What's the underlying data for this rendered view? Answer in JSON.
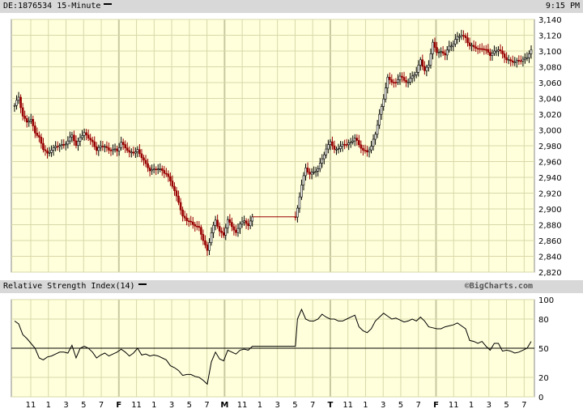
{
  "header": {
    "symbol_label": "DE:1876534 15-Minute",
    "time": "9:15 PM"
  },
  "rsi_panel": {
    "label": "Relative Strength Index(14)",
    "watermark": "©BigCharts.com"
  },
  "colors": {
    "background": "#ffffdc",
    "grid": "#d8d8a8",
    "divider": "#c8c8a0",
    "down": "#990000",
    "up": "#000000"
  },
  "chart_data": [
    {
      "type": "candlestick",
      "interval": "15-Minute",
      "ylim": [
        2820,
        3140
      ],
      "yticks": [
        2820,
        2840,
        2860,
        2880,
        2900,
        2920,
        2940,
        2960,
        2980,
        3000,
        3020,
        3040,
        3060,
        3080,
        3100,
        3120,
        3140
      ],
      "ytick_labels": [
        "2,820",
        "2,840",
        "2,860",
        "2,880",
        "2,900",
        "2,920",
        "2,940",
        "2,960",
        "2,980",
        "3,000",
        "3,020",
        "3,040",
        "3,060",
        "3,080",
        "3,100",
        "3,120",
        "3,140"
      ],
      "xtick_labels": [
        "11",
        "1",
        "3",
        "5",
        "7",
        "F",
        "11",
        "1",
        "3",
        "5",
        "7",
        "M",
        "11",
        "1",
        "3",
        "5",
        "7",
        "T",
        "11",
        "1",
        "3",
        "5",
        "7",
        "F",
        "11",
        "1",
        "3",
        "5",
        "7"
      ],
      "day_labels": [
        "F",
        "M",
        "T",
        "F"
      ],
      "close_path": [
        [
          0,
          3030
        ],
        [
          2,
          3042
        ],
        [
          4,
          3018
        ],
        [
          6,
          3010
        ],
        [
          8,
          3012
        ],
        [
          10,
          2998
        ],
        [
          12,
          2990
        ],
        [
          14,
          2975
        ],
        [
          16,
          2970
        ],
        [
          18,
          2976
        ],
        [
          20,
          2978
        ],
        [
          22,
          2980
        ],
        [
          24,
          2982
        ],
        [
          26,
          2986
        ],
        [
          28,
          2993
        ],
        [
          30,
          2980
        ],
        [
          32,
          2992
        ],
        [
          34,
          2995
        ],
        [
          36,
          2990
        ],
        [
          38,
          2985
        ],
        [
          40,
          2975
        ],
        [
          42,
          2978
        ],
        [
          44,
          2980
        ],
        [
          46,
          2975
        ],
        [
          48,
          2975
        ],
        [
          50,
          2973
        ],
        [
          52,
          2985
        ],
        [
          54,
          2978
        ],
        [
          56,
          2970
        ],
        [
          58,
          2972
        ],
        [
          60,
          2975
        ],
        [
          62,
          2965
        ],
        [
          64,
          2956
        ],
        [
          66,
          2950
        ],
        [
          68,
          2950
        ],
        [
          70,
          2950
        ],
        [
          72,
          2949
        ],
        [
          74,
          2945
        ],
        [
          76,
          2935
        ],
        [
          78,
          2922
        ],
        [
          80,
          2910
        ],
        [
          82,
          2890
        ],
        [
          84,
          2885
        ],
        [
          86,
          2883
        ],
        [
          88,
          2880
        ],
        [
          90,
          2875
        ],
        [
          92,
          2860
        ],
        [
          94,
          2848
        ],
        [
          96,
          2870
        ],
        [
          98,
          2885
        ],
        [
          100,
          2872
        ],
        [
          102,
          2868
        ],
        [
          104,
          2885
        ],
        [
          106,
          2878
        ],
        [
          108,
          2870
        ],
        [
          110,
          2882
        ],
        [
          112,
          2883
        ],
        [
          114,
          2880
        ],
        [
          116,
          2890
        ],
        [
          120,
          2890
        ],
        [
          126,
          2890
        ],
        [
          132,
          2890
        ],
        [
          137,
          2890
        ],
        [
          138,
          2900
        ],
        [
          140,
          2930
        ],
        [
          142,
          2952
        ],
        [
          144,
          2945
        ],
        [
          146,
          2946
        ],
        [
          148,
          2950
        ],
        [
          150,
          2965
        ],
        [
          152,
          2975
        ],
        [
          154,
          2985
        ],
        [
          156,
          2975
        ],
        [
          158,
          2978
        ],
        [
          160,
          2980
        ],
        [
          162,
          2982
        ],
        [
          164,
          2985
        ],
        [
          166,
          2990
        ],
        [
          168,
          2980
        ],
        [
          170,
          2975
        ],
        [
          172,
          2973
        ],
        [
          174,
          2978
        ],
        [
          176,
          2995
        ],
        [
          178,
          3020
        ],
        [
          180,
          3040
        ],
        [
          182,
          3065
        ],
        [
          184,
          3062
        ],
        [
          186,
          3060
        ],
        [
          188,
          3068
        ],
        [
          190,
          3062
        ],
        [
          192,
          3062
        ],
        [
          194,
          3068
        ],
        [
          196,
          3072
        ],
        [
          198,
          3090
        ],
        [
          200,
          3075
        ],
        [
          202,
          3082
        ],
        [
          204,
          3110
        ],
        [
          206,
          3100
        ],
        [
          208,
          3098
        ],
        [
          210,
          3095
        ],
        [
          212,
          3106
        ],
        [
          214,
          3110
        ],
        [
          216,
          3117
        ],
        [
          218,
          3120
        ],
        [
          220,
          3118
        ],
        [
          222,
          3106
        ],
        [
          224,
          3105
        ],
        [
          226,
          3103
        ],
        [
          228,
          3104
        ],
        [
          230,
          3100
        ],
        [
          232,
          3095
        ],
        [
          234,
          3100
        ],
        [
          236,
          3102
        ],
        [
          238,
          3095
        ],
        [
          240,
          3090
        ],
        [
          242,
          3088
        ],
        [
          244,
          3085
        ],
        [
          246,
          3088
        ],
        [
          248,
          3090
        ],
        [
          250,
          3092
        ],
        [
          252,
          3100
        ]
      ]
    },
    {
      "type": "line",
      "name": "Relative Strength Index(14)",
      "ylim": [
        0,
        100
      ],
      "yticks": [
        0,
        20,
        50,
        80,
        100
      ],
      "reference_line": 50,
      "path": [
        [
          0,
          78
        ],
        [
          2,
          75
        ],
        [
          4,
          64
        ],
        [
          6,
          60
        ],
        [
          8,
          55
        ],
        [
          10,
          50
        ],
        [
          12,
          40
        ],
        [
          14,
          38
        ],
        [
          16,
          41
        ],
        [
          18,
          42
        ],
        [
          20,
          44
        ],
        [
          22,
          46
        ],
        [
          24,
          46
        ],
        [
          26,
          45
        ],
        [
          28,
          53
        ],
        [
          30,
          40
        ],
        [
          32,
          50
        ],
        [
          34,
          52
        ],
        [
          36,
          50
        ],
        [
          38,
          46
        ],
        [
          40,
          40
        ],
        [
          42,
          43
        ],
        [
          44,
          45
        ],
        [
          46,
          42
        ],
        [
          48,
          44
        ],
        [
          50,
          46
        ],
        [
          52,
          49
        ],
        [
          54,
          46
        ],
        [
          56,
          42
        ],
        [
          58,
          45
        ],
        [
          60,
          50
        ],
        [
          62,
          43
        ],
        [
          64,
          44
        ],
        [
          66,
          42
        ],
        [
          68,
          43
        ],
        [
          70,
          42
        ],
        [
          72,
          40
        ],
        [
          74,
          38
        ],
        [
          76,
          32
        ],
        [
          78,
          30
        ],
        [
          80,
          27
        ],
        [
          82,
          22
        ],
        [
          84,
          23
        ],
        [
          86,
          23
        ],
        [
          88,
          21
        ],
        [
          90,
          20
        ],
        [
          92,
          17
        ],
        [
          94,
          13
        ],
        [
          96,
          36
        ],
        [
          98,
          46
        ],
        [
          100,
          39
        ],
        [
          102,
          37
        ],
        [
          104,
          48
        ],
        [
          106,
          46
        ],
        [
          108,
          44
        ],
        [
          110,
          48
        ],
        [
          112,
          49
        ],
        [
          114,
          48
        ],
        [
          116,
          52
        ],
        [
          120,
          52
        ],
        [
          126,
          52
        ],
        [
          132,
          52
        ],
        [
          137,
          52
        ],
        [
          138,
          80
        ],
        [
          140,
          90
        ],
        [
          142,
          80
        ],
        [
          144,
          78
        ],
        [
          146,
          78
        ],
        [
          148,
          80
        ],
        [
          150,
          85
        ],
        [
          152,
          82
        ],
        [
          154,
          80
        ],
        [
          156,
          80
        ],
        [
          158,
          78
        ],
        [
          160,
          78
        ],
        [
          162,
          80
        ],
        [
          164,
          82
        ],
        [
          166,
          84
        ],
        [
          168,
          72
        ],
        [
          170,
          68
        ],
        [
          172,
          66
        ],
        [
          174,
          70
        ],
        [
          176,
          78
        ],
        [
          178,
          82
        ],
        [
          180,
          86
        ],
        [
          182,
          83
        ],
        [
          184,
          80
        ],
        [
          186,
          81
        ],
        [
          188,
          79
        ],
        [
          190,
          77
        ],
        [
          192,
          78
        ],
        [
          194,
          80
        ],
        [
          196,
          78
        ],
        [
          198,
          82
        ],
        [
          200,
          78
        ],
        [
          202,
          72
        ],
        [
          204,
          71
        ],
        [
          206,
          70
        ],
        [
          208,
          70
        ],
        [
          210,
          72
        ],
        [
          212,
          73
        ],
        [
          214,
          74
        ],
        [
          216,
          76
        ],
        [
          218,
          73
        ],
        [
          220,
          70
        ],
        [
          222,
          58
        ],
        [
          224,
          57
        ],
        [
          226,
          55
        ],
        [
          228,
          57
        ],
        [
          230,
          52
        ],
        [
          232,
          48
        ],
        [
          234,
          55
        ],
        [
          236,
          55
        ],
        [
          238,
          47
        ],
        [
          240,
          48
        ],
        [
          242,
          47
        ],
        [
          244,
          45
        ],
        [
          246,
          46
        ],
        [
          248,
          48
        ],
        [
          250,
          50
        ],
        [
          252,
          57
        ]
      ]
    }
  ]
}
